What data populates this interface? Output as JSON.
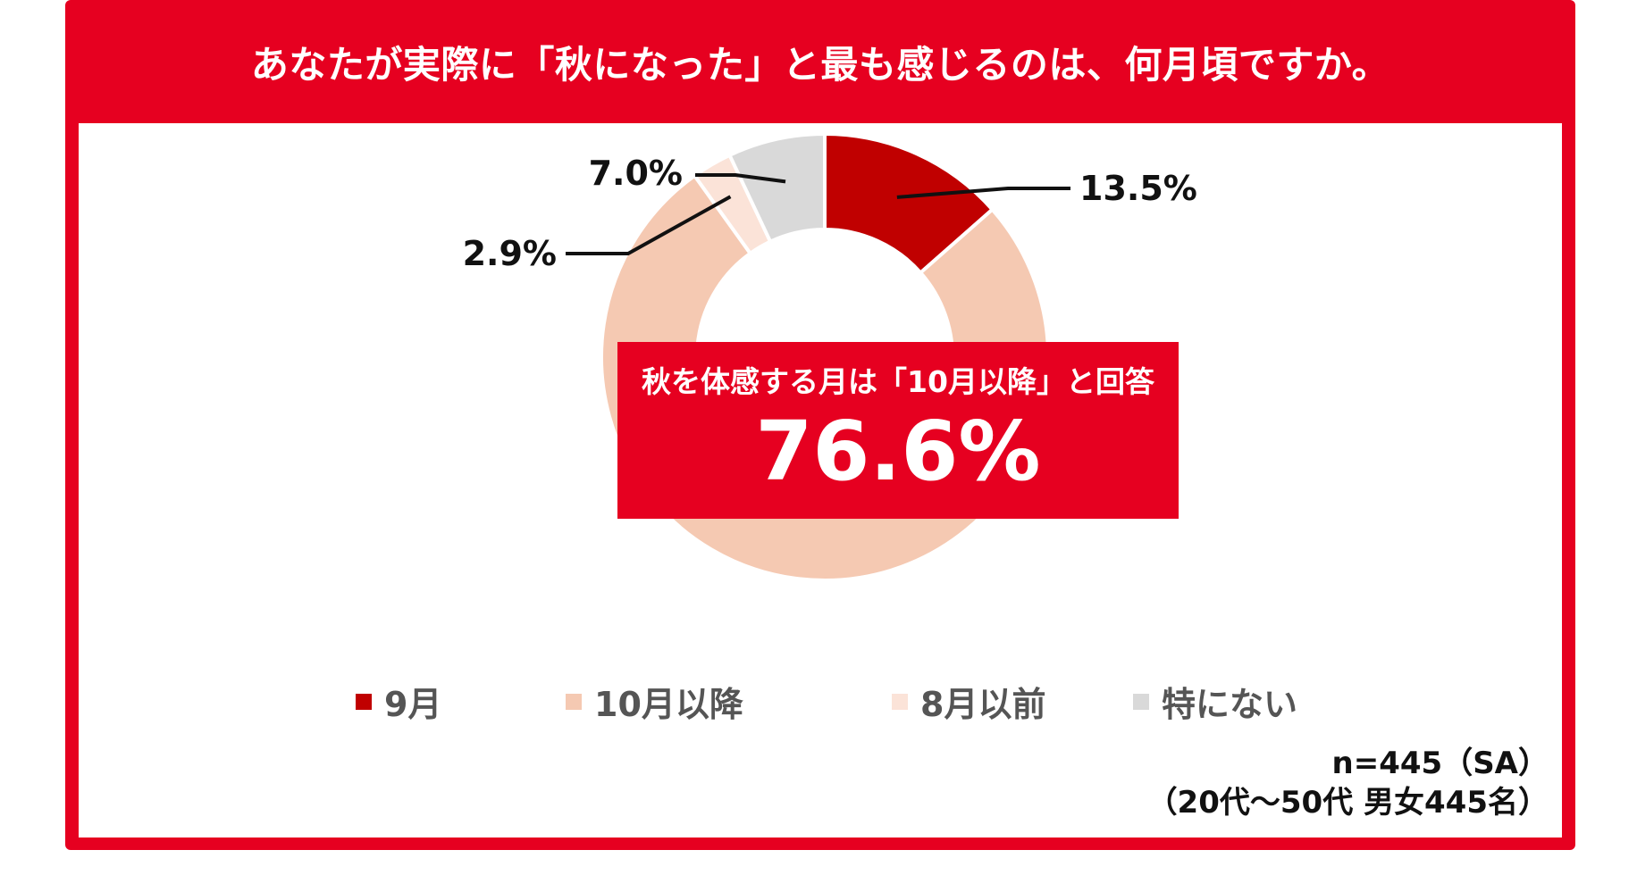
{
  "title": "あなたが実際に「秋になった」と最も感じるのは、何月頃ですか。",
  "callout": {
    "subtitle": "秋を体感する月は「10月以降」と回答",
    "value": "76.6%"
  },
  "note": {
    "line1": "n=445（SA）",
    "line2": "（20代〜50代 男女445名）"
  },
  "colors": {
    "frame": "#e60020",
    "september": "#c00000",
    "october_after": "#f5c9b2",
    "august_before": "#fbe3d8",
    "none": "#d9d9d9"
  },
  "chart_data": {
    "type": "pie",
    "donut": true,
    "categories": [
      "9月",
      "10月以降",
      "8月以前",
      "特にない"
    ],
    "values": [
      13.5,
      76.6,
      2.9,
      7.0
    ],
    "labels": [
      "13.5%",
      "76.6%",
      "2.9%",
      "7.0%"
    ],
    "colors": [
      "#c00000",
      "#f5c9b2",
      "#fbe3d8",
      "#d9d9d9"
    ],
    "legend_position": "bottom"
  }
}
